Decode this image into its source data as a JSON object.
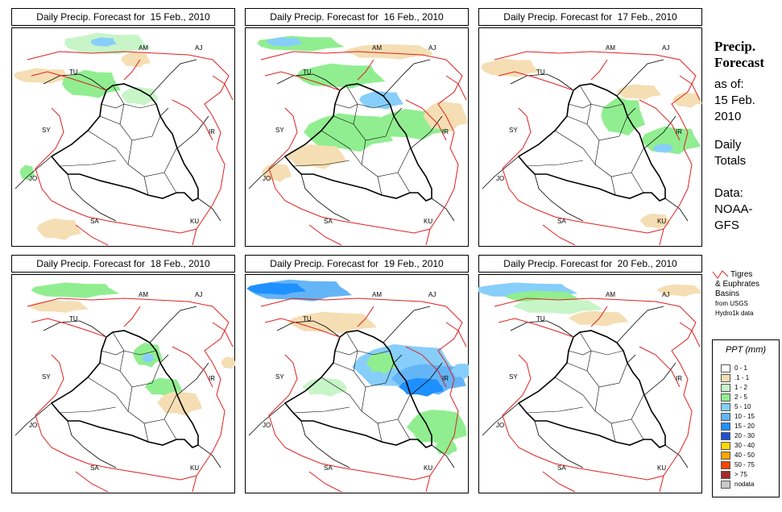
{
  "panels": [
    {
      "title": "Daily Precip. Forecast for  15 Feb., 2010"
    },
    {
      "title": "Daily Precip. Forecast for  16 Feb., 2010"
    },
    {
      "title": "Daily Precip. Forecast for  17 Feb., 2010"
    },
    {
      "title": "Daily Precip. Forecast for  18 Feb., 2010"
    },
    {
      "title": "Daily Precip. Forecast for  19 Feb., 2010"
    },
    {
      "title": "Daily Precip. Forecast for  20 Feb., 2010"
    }
  ],
  "map_labels": {
    "am": "AM",
    "aj": "AJ",
    "tu": "TU",
    "sy": "SY",
    "ir": "IR",
    "jo": "JO",
    "sa": "SA",
    "ku": "KU"
  },
  "side": {
    "heading_line1": "Precip.",
    "heading_line2": "Forecast",
    "asof": "as of:",
    "date_line1": "15 Feb.",
    "date_line2": "2010",
    "totals_line1": "Daily",
    "totals_line2": "Totals",
    "data_line1": "Data:",
    "data_line2": "NOAA-",
    "data_line3": "GFS"
  },
  "basin_legend": {
    "line1": "Tigres",
    "line2": "& Euphrates",
    "line3": "Basins",
    "line4": "from USGS",
    "line5": "Hydro1k data"
  },
  "legend": {
    "title": "PPT (mm)",
    "items": [
      {
        "label": "0 - 1",
        "color": "#ffffff"
      },
      {
        "label": ".1 - 1",
        "color": "#f5deb3"
      },
      {
        "label": "1 - 2",
        "color": "#c8f5c8"
      },
      {
        "label": "2 - 5",
        "color": "#90ee90"
      },
      {
        "label": "5 - 10",
        "color": "#87cefa"
      },
      {
        "label": "10 - 15",
        "color": "#64b5f6"
      },
      {
        "label": "15 - 20",
        "color": "#1e90ff"
      },
      {
        "label": "20 - 30",
        "color": "#1e50d2"
      },
      {
        "label": "30 - 40",
        "color": "#ffd700"
      },
      {
        "label": "40 - 50",
        "color": "#ffa500"
      },
      {
        "label": "50 - 75",
        "color": "#ff4500"
      },
      {
        "label": "> 75",
        "color": "#a52a2a"
      },
      {
        "label": "nodata",
        "color": "#c8c8c8"
      }
    ]
  },
  "colors": {
    "basin": "#e02020",
    "border": "#000000"
  }
}
